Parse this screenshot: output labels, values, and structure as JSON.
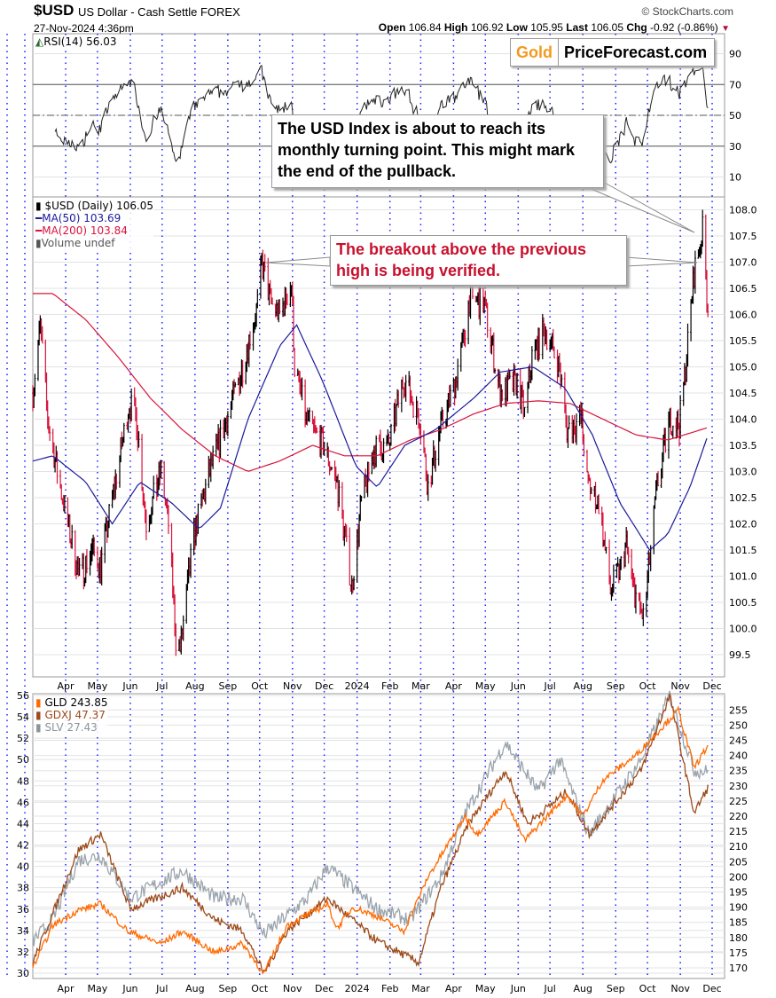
{
  "header": {
    "symbol": "$USD",
    "name": "US Dollar - Cash Settle FOREX",
    "source": "© StockCharts.com",
    "datetime": "27-Nov-2024 4:36pm",
    "open_label": "Open",
    "open": "106.84",
    "high_label": "High",
    "high": "106.92",
    "low_label": "Low",
    "low": "105.95",
    "last_label": "Last",
    "last": "106.05",
    "chg_label": "Chg",
    "chg": "-0.92 (-0.86%)",
    "chg_direction": "down"
  },
  "logo": {
    "part1": "Gold",
    "part2": "PriceForecast.com"
  },
  "rsi": {
    "label": "RSI(14) 56.03",
    "ticks": [
      90,
      70,
      50,
      30,
      10
    ],
    "overbought": 70,
    "oversold": 30
  },
  "price_legend": {
    "main": "$USD (Daily) 106.05",
    "ma50": "MA(50) 103.69",
    "ma200": "MA(200) 103.84",
    "volume": "Volume undef"
  },
  "callouts": {
    "turning_point": "The USD Index is about to reach its monthly turning point. This might mark the end of the pullback.",
    "breakout": "The breakout above the previous high is being verified."
  },
  "colors": {
    "ma50": "#1a1a9c",
    "ma200": "#d8143c",
    "up": "#000000",
    "down": "#d8143c",
    "gld": "#ff6a00",
    "gdxj": "#9c4a1a",
    "slv": "#9aa4ac",
    "grid_dots": "#1a1aff",
    "callout_red": "#c8102e"
  },
  "months": [
    [
      "2023-04-01",
      "Apr"
    ],
    [
      "2023-05-01",
      "May"
    ],
    [
      "2023-06-01",
      "Jun"
    ],
    [
      "2023-07-01",
      "Jul"
    ],
    [
      "2023-08-01",
      "Aug"
    ],
    [
      "2023-09-01",
      "Sep"
    ],
    [
      "2023-10-01",
      "Oct"
    ],
    [
      "2023-11-01",
      "Nov"
    ],
    [
      "2023-12-01",
      "Dec"
    ],
    [
      "2024-01-01",
      "2024"
    ],
    [
      "2024-02-01",
      "Feb"
    ],
    [
      "2024-03-01",
      "Mar"
    ],
    [
      "2024-04-01",
      "Apr"
    ],
    [
      "2024-05-01",
      "May"
    ],
    [
      "2024-06-01",
      "Jun"
    ],
    [
      "2024-07-01",
      "Jul"
    ],
    [
      "2024-08-01",
      "Aug"
    ],
    [
      "2024-09-01",
      "Sep"
    ],
    [
      "2024-10-01",
      "Oct"
    ],
    [
      "2024-11-01",
      "Nov"
    ],
    [
      "2024-12-01",
      "Dec"
    ]
  ],
  "chart_data": [
    {
      "type": "line",
      "name": "RSI(14)",
      "ylim": [
        0,
        100
      ],
      "ticks": [
        90,
        70,
        50,
        30,
        10
      ]
    },
    {
      "type": "candlestick",
      "ylim": [
        99.2,
        108.3
      ],
      "ticks": [
        108.0,
        107.5,
        107.0,
        106.5,
        106.0,
        105.5,
        105.0,
        104.5,
        104.0,
        103.5,
        103.0,
        102.5,
        102.0,
        101.5,
        101.0,
        100.5,
        100.0,
        99.5
      ],
      "close_keypoints": [
        [
          "2023-03-01",
          104.5
        ],
        [
          "2023-03-08",
          105.8
        ],
        [
          "2023-03-15",
          104.0
        ],
        [
          "2023-03-24",
          103.0
        ],
        [
          "2023-04-03",
          102.0
        ],
        [
          "2023-04-14",
          101.0
        ],
        [
          "2023-04-26",
          101.5
        ],
        [
          "2023-05-04",
          101.2
        ],
        [
          "2023-05-15",
          102.5
        ],
        [
          "2023-05-31",
          104.3
        ],
        [
          "2023-06-07",
          104.0
        ],
        [
          "2023-06-16",
          102.0
        ],
        [
          "2023-06-30",
          103.0
        ],
        [
          "2023-07-07",
          102.0
        ],
        [
          "2023-07-14",
          99.8
        ],
        [
          "2023-07-18",
          99.6
        ],
        [
          "2023-07-31",
          101.8
        ],
        [
          "2023-08-15",
          103.0
        ],
        [
          "2023-08-31",
          104.0
        ],
        [
          "2023-09-15",
          105.0
        ],
        [
          "2023-09-29",
          106.2
        ],
        [
          "2023-10-03",
          107.0
        ],
        [
          "2023-10-12",
          106.2
        ],
        [
          "2023-10-20",
          106.0
        ],
        [
          "2023-10-31",
          106.6
        ],
        [
          "2023-11-03",
          105.0
        ],
        [
          "2023-11-14",
          104.0
        ],
        [
          "2023-11-30",
          103.5
        ],
        [
          "2023-12-13",
          102.8
        ],
        [
          "2023-12-27",
          100.8
        ],
        [
          "2024-01-05",
          102.4
        ],
        [
          "2024-01-17",
          103.4
        ],
        [
          "2024-01-31",
          103.5
        ],
        [
          "2024-02-14",
          104.8
        ],
        [
          "2024-02-29",
          104.0
        ],
        [
          "2024-03-08",
          102.7
        ],
        [
          "2024-03-19",
          103.8
        ],
        [
          "2024-04-01",
          104.6
        ],
        [
          "2024-04-10",
          105.5
        ],
        [
          "2024-04-16",
          106.3
        ],
        [
          "2024-04-30",
          106.2
        ],
        [
          "2024-05-15",
          104.5
        ],
        [
          "2024-05-31",
          104.7
        ],
        [
          "2024-06-07",
          104.1
        ],
        [
          "2024-06-14",
          105.2
        ],
        [
          "2024-06-26",
          105.7
        ],
        [
          "2024-07-10",
          105.0
        ],
        [
          "2024-07-17",
          103.8
        ],
        [
          "2024-07-31",
          104.0
        ],
        [
          "2024-08-05",
          102.8
        ],
        [
          "2024-08-16",
          102.4
        ],
        [
          "2024-08-27",
          100.7
        ],
        [
          "2024-09-06",
          101.2
        ],
        [
          "2024-09-11",
          101.6
        ],
        [
          "2024-09-17",
          100.8
        ],
        [
          "2024-09-27",
          100.2
        ],
        [
          "2024-10-01",
          100.9
        ],
        [
          "2024-10-10",
          102.7
        ],
        [
          "2024-10-22",
          104.0
        ],
        [
          "2024-10-31",
          103.9
        ],
        [
          "2024-11-06",
          105.0
        ],
        [
          "2024-11-14",
          106.8
        ],
        [
          "2024-11-22",
          107.6
        ],
        [
          "2024-11-27",
          106.05
        ]
      ],
      "ma50": [
        [
          "2023-03-01",
          103.2
        ],
        [
          "2023-03-20",
          103.3
        ],
        [
          "2023-04-20",
          102.8
        ],
        [
          "2023-05-15",
          102.0
        ],
        [
          "2023-06-10",
          102.8
        ],
        [
          "2023-07-10",
          102.4
        ],
        [
          "2023-08-05",
          101.9
        ],
        [
          "2023-08-25",
          102.3
        ],
        [
          "2023-09-20",
          104.0
        ],
        [
          "2023-10-20",
          105.4
        ],
        [
          "2023-11-05",
          105.8
        ],
        [
          "2023-11-30",
          104.7
        ],
        [
          "2023-12-31",
          103.1
        ],
        [
          "2024-01-20",
          102.7
        ],
        [
          "2024-02-15",
          103.5
        ],
        [
          "2024-03-15",
          103.8
        ],
        [
          "2024-04-20",
          104.4
        ],
        [
          "2024-05-15",
          104.9
        ],
        [
          "2024-06-15",
          105.0
        ],
        [
          "2024-07-15",
          104.6
        ],
        [
          "2024-08-10",
          103.7
        ],
        [
          "2024-09-05",
          102.4
        ],
        [
          "2024-10-03",
          101.5
        ],
        [
          "2024-10-20",
          101.8
        ],
        [
          "2024-11-10",
          102.7
        ],
        [
          "2024-11-27",
          103.69
        ]
      ],
      "ma200": [
        [
          "2023-03-01",
          106.4
        ],
        [
          "2023-03-20",
          106.4
        ],
        [
          "2023-04-20",
          105.9
        ],
        [
          "2023-05-20",
          105.2
        ],
        [
          "2023-06-20",
          104.4
        ],
        [
          "2023-07-20",
          103.8
        ],
        [
          "2023-08-20",
          103.3
        ],
        [
          "2023-09-20",
          103.0
        ],
        [
          "2023-10-20",
          103.2
        ],
        [
          "2023-11-20",
          103.5
        ],
        [
          "2023-12-20",
          103.3
        ],
        [
          "2024-01-20",
          103.3
        ],
        [
          "2024-02-20",
          103.6
        ],
        [
          "2024-03-20",
          103.8
        ],
        [
          "2024-04-20",
          104.1
        ],
        [
          "2024-05-20",
          104.3
        ],
        [
          "2024-06-20",
          104.35
        ],
        [
          "2024-07-20",
          104.3
        ],
        [
          "2024-08-20",
          104.0
        ],
        [
          "2024-09-20",
          103.7
        ],
        [
          "2024-10-20",
          103.6
        ],
        [
          "2024-11-27",
          103.84
        ]
      ]
    },
    {
      "type": "line",
      "ylim_left": [
        30,
        56
      ],
      "ylim_right": [
        170,
        255
      ],
      "ticks_left": [
        56,
        54,
        52,
        50,
        48,
        46,
        44,
        42,
        40,
        38,
        36,
        34,
        32,
        30
      ],
      "ticks_right": [
        255,
        250,
        245,
        240,
        235,
        230,
        225,
        220,
        215,
        210,
        205,
        200,
        195,
        190,
        185,
        180,
        175,
        170
      ],
      "series": [
        {
          "name": "GLD 243.85",
          "axis": "right",
          "values": [
            [
              "2023-03-01",
              170
            ],
            [
              "2023-03-20",
              184
            ],
            [
              "2023-04-13",
              189
            ],
            [
              "2023-05-04",
              191
            ],
            [
              "2023-05-30",
              182
            ],
            [
              "2023-06-30",
              178
            ],
            [
              "2023-07-20",
              182
            ],
            [
              "2023-08-20",
              175
            ],
            [
              "2023-09-15",
              178
            ],
            [
              "2023-10-05",
              168
            ],
            [
              "2023-10-27",
              184
            ],
            [
              "2023-12-04",
              191
            ],
            [
              "2023-12-13",
              183
            ],
            [
              "2023-12-28",
              190
            ],
            [
              "2024-01-20",
              187
            ],
            [
              "2024-02-14",
              182
            ],
            [
              "2024-03-08",
              200
            ],
            [
              "2024-04-12",
              220
            ],
            [
              "2024-04-23",
              214
            ],
            [
              "2024-05-20",
              225
            ],
            [
              "2024-06-07",
              212
            ],
            [
              "2024-07-17",
              227
            ],
            [
              "2024-08-01",
              220
            ],
            [
              "2024-08-20",
              232
            ],
            [
              "2024-09-20",
              240
            ],
            [
              "2024-10-30",
              255
            ],
            [
              "2024-11-14",
              236
            ],
            [
              "2024-11-25",
              242
            ],
            [
              "2024-11-27",
              243.85
            ]
          ]
        },
        {
          "name": "GDXJ 47.37",
          "axis": "left",
          "values": [
            [
              "2023-03-01",
              31
            ],
            [
              "2023-04-13",
              41.5
            ],
            [
              "2023-05-04",
              43
            ],
            [
              "2023-06-01",
              36
            ],
            [
              "2023-07-20",
              38
            ],
            [
              "2023-08-20",
              35
            ],
            [
              "2023-09-15",
              34
            ],
            [
              "2023-10-05",
              30
            ],
            [
              "2023-10-27",
              34
            ],
            [
              "2023-12-04",
              37
            ],
            [
              "2024-01-20",
              33
            ],
            [
              "2024-02-28",
              31
            ],
            [
              "2024-03-20",
              38
            ],
            [
              "2024-04-15",
              44
            ],
            [
              "2024-05-20",
              49
            ],
            [
              "2024-06-10",
              44
            ],
            [
              "2024-07-17",
              47
            ],
            [
              "2024-08-07",
              43
            ],
            [
              "2024-09-25",
              49
            ],
            [
              "2024-10-22",
              56
            ],
            [
              "2024-11-14",
              45
            ],
            [
              "2024-11-27",
              47.37
            ]
          ]
        },
        {
          "name": "SLV 27.43",
          "axis": "own",
          "values": [
            [
              "2023-03-01",
              19.5
            ],
            [
              "2023-03-20",
              20.5
            ],
            [
              "2023-04-13",
              23.3
            ],
            [
              "2023-05-04",
              23.5
            ],
            [
              "2023-06-01",
              21.5
            ],
            [
              "2023-07-20",
              22.8
            ],
            [
              "2023-08-20",
              21.5
            ],
            [
              "2023-09-15",
              21.5
            ],
            [
              "2023-10-05",
              19.8
            ],
            [
              "2023-11-15",
              21.5
            ],
            [
              "2023-12-04",
              23
            ],
            [
              "2024-01-20",
              21
            ],
            [
              "2024-02-20",
              20.5
            ],
            [
              "2024-03-20",
              22.5
            ],
            [
              "2024-04-12",
              25.5
            ],
            [
              "2024-05-20",
              28.8
            ],
            [
              "2024-06-20",
              26.5
            ],
            [
              "2024-07-10",
              28
            ],
            [
              "2024-08-07",
              24.5
            ],
            [
              "2024-09-25",
              28
            ],
            [
              "2024-10-22",
              31.0
            ],
            [
              "2024-11-14",
              27.5
            ],
            [
              "2024-11-27",
              27.43
            ]
          ]
        }
      ]
    }
  ]
}
